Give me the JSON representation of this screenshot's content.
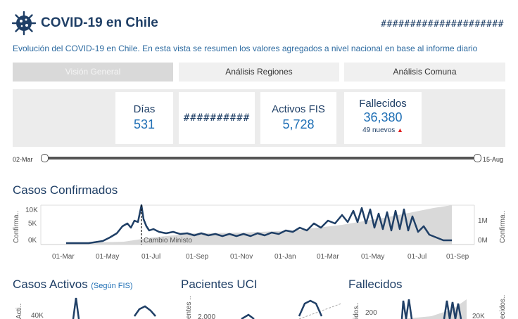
{
  "header": {
    "title": "COVID-19 en Chile",
    "hashes": "#####################",
    "subtitle": "Evolución del COVID-19 en Chile. En esta vista se resumen los valores agregados a nivel nacional en base al informe diario"
  },
  "tabs": [
    {
      "label": "Visión General",
      "active": true
    },
    {
      "label": "Análisis Regiones",
      "active": false
    },
    {
      "label": "Análisis Comuna",
      "active": false
    }
  ],
  "kpis": {
    "dias": {
      "label": "Días",
      "value": "531"
    },
    "hash": {
      "value": "##########"
    },
    "activos": {
      "label": "Activos FIS",
      "value": "5,728"
    },
    "fallecidos": {
      "label": "Fallecidos",
      "value": "36,380",
      "sub": "49 nuevos",
      "trend": "up",
      "trend_color": "#e02020"
    }
  },
  "slider": {
    "start": "02-Mar",
    "end": "15-Aug"
  },
  "confirmados": {
    "title": "Casos Confirmados",
    "ylabel_left": "Confirma..",
    "ylabel_right": "Confirma..",
    "left_ticks": [
      "10K",
      "5K",
      "0K"
    ],
    "right_ticks": [
      "1M",
      "0M"
    ],
    "x_ticks": [
      "01-Mar",
      "01-May",
      "01-Jul",
      "01-Sep",
      "01-Nov",
      "01-Jan",
      "01-Mar",
      "01-May",
      "01-Jul",
      "01-Sep"
    ],
    "annotation": "Cambio Ministo",
    "colors": {
      "line": "#1f3f66",
      "area": "#d9d9d9"
    }
  },
  "activos": {
    "title": "Casos Activos",
    "note": "(Según FIS)",
    "ylabel": "Acti..",
    "tick": "40K"
  },
  "uci": {
    "title": "Pacientes UCI",
    "ylabel": "entes ..",
    "tick": "2,000"
  },
  "fallecidos_chart": {
    "title": "Fallecidos",
    "ylabel_left": "idos..",
    "ylabel_right": "ecidos..",
    "tick_left": "200",
    "tick_right": "20K"
  }
}
